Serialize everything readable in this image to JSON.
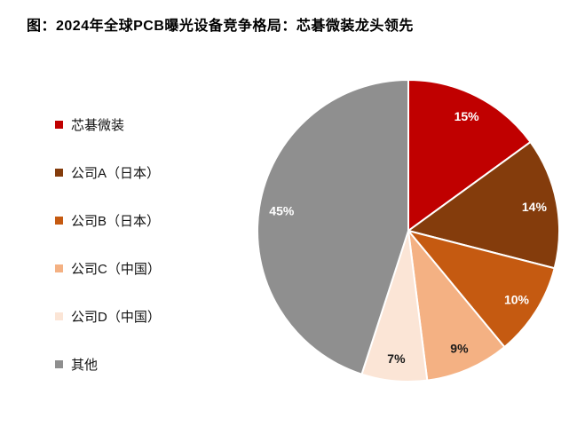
{
  "figure": {
    "title": "图：2024年全球PCB曝光设备竞争格局：芯碁微装龙头领先"
  },
  "chart_data": {
    "type": "pie",
    "title": "图：2024年全球PCB曝光设备竞争格局：芯碁微装龙头领先",
    "legend_position": "left",
    "start_angle_deg": 0,
    "direction": "clockwise",
    "total": 100,
    "slices": [
      {
        "label": "芯碁微装",
        "value": 15,
        "data_label": "15%",
        "color": "#C00000",
        "label_color": "#FFFFFF"
      },
      {
        "label": "公司A（日本）",
        "value": 14,
        "data_label": "14%",
        "color": "#843C0C",
        "label_color": "#FFFFFF"
      },
      {
        "label": "公司B（日本）",
        "value": 10,
        "data_label": "10%",
        "color": "#C55A11",
        "label_color": "#FFFFFF"
      },
      {
        "label": "公司C（中国）",
        "value": 9,
        "data_label": "9%",
        "color": "#F4B183",
        "label_color": "#1A1A1A"
      },
      {
        "label": "公司D（中国）",
        "value": 7,
        "data_label": "7%",
        "color": "#FBE5D6",
        "label_color": "#1A1A1A"
      },
      {
        "label": "其他",
        "value": 45,
        "data_label": "45%",
        "color": "#8F8F8F",
        "label_color": "#FFFFFF"
      }
    ]
  }
}
